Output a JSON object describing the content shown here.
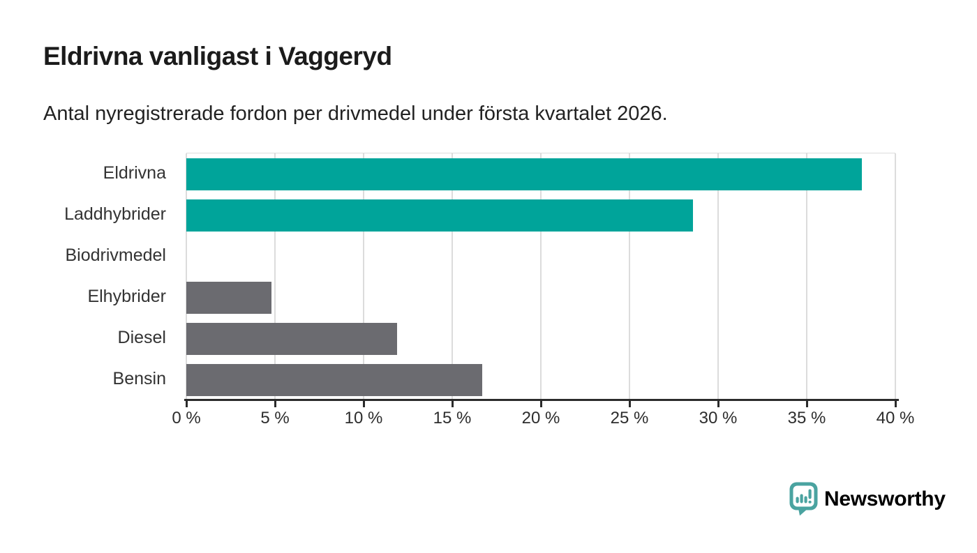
{
  "title": "Eldrivna vanligast i Vaggeryd",
  "subtitle": "Antal nyregistrerade fordon per drivmedel under första kvartalet 2026.",
  "branding": {
    "logo_text": "Newsworthy",
    "logo_icon": "bar-chart-speech-bubble-icon",
    "icon_color": "#4aa3a0",
    "text_color": "#2f9793"
  },
  "colors": {
    "highlight_bar": "#00a49a",
    "default_bar": "#6b6b70",
    "gridline": "#dcdcdc",
    "axis": "#2b2b2b",
    "title_text": "#1b1b1b",
    "label_text": "#333333"
  },
  "chart_data": {
    "type": "bar",
    "orientation": "horizontal",
    "title": "Eldrivna vanligast i Vaggeryd",
    "subtitle": "Antal nyregistrerade fordon per drivmedel under första kvartalet 2026.",
    "categories": [
      "Eldrivna",
      "Laddhybrider",
      "Biodrivmedel",
      "Elhybrider",
      "Diesel",
      "Bensin"
    ],
    "values": [
      38.1,
      28.6,
      0,
      4.8,
      11.9,
      16.7
    ],
    "unit": "%",
    "xlim": [
      0,
      40
    ],
    "x_tick_values": [
      0,
      5,
      10,
      15,
      20,
      25,
      30,
      35,
      40
    ],
    "x_tick_labels": [
      "0 %",
      "5 %",
      "10 %",
      "15 %",
      "20 %",
      "25 %",
      "30 %",
      "35 %",
      "40 %"
    ],
    "bar_colors": [
      "#00a49a",
      "#00a49a",
      "#6b6b70",
      "#6b6b70",
      "#6b6b70",
      "#6b6b70"
    ],
    "grid": true,
    "legend": false,
    "ylabel": "",
    "xlabel": ""
  }
}
